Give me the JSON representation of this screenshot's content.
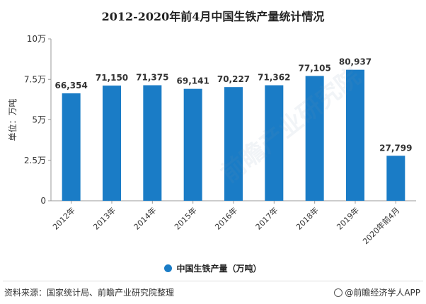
{
  "chart_data": {
    "type": "bar",
    "title": "2012-2020年前4月中国生铁产量统计情况",
    "categories": [
      "2012年",
      "2013年",
      "2014年",
      "2015年",
      "2016年",
      "2017年",
      "2018年",
      "2019年",
      "2020年前4月"
    ],
    "series": [
      {
        "name": "中国生铁产量（万吨）",
        "values": [
          66354,
          71150,
          71375,
          69141,
          70227,
          71362,
          77105,
          80937,
          27799
        ],
        "labels": [
          "66,354",
          "71,150",
          "71,375",
          "69,141",
          "70,227",
          "71,362",
          "77,105",
          "80,937",
          "27,799"
        ]
      }
    ],
    "ylabel": "单位：万吨",
    "ylim": [
      0,
      100000
    ],
    "yticks": [
      0,
      25000,
      50000,
      75000,
      100000
    ],
    "ytick_labels": [
      "0",
      "2.5万",
      "5万",
      "7.5万",
      "10万"
    ],
    "grid": false,
    "legend_position": "bottom"
  },
  "colors": {
    "bar": "#1a7cc6",
    "axis": "#999999"
  },
  "footer": {
    "source": "资料来源：国家统计局、前瞻产业研究院整理",
    "brand": "@前瞻经济学人APP"
  },
  "watermark": {
    "text": "前瞻产业研究院"
  }
}
